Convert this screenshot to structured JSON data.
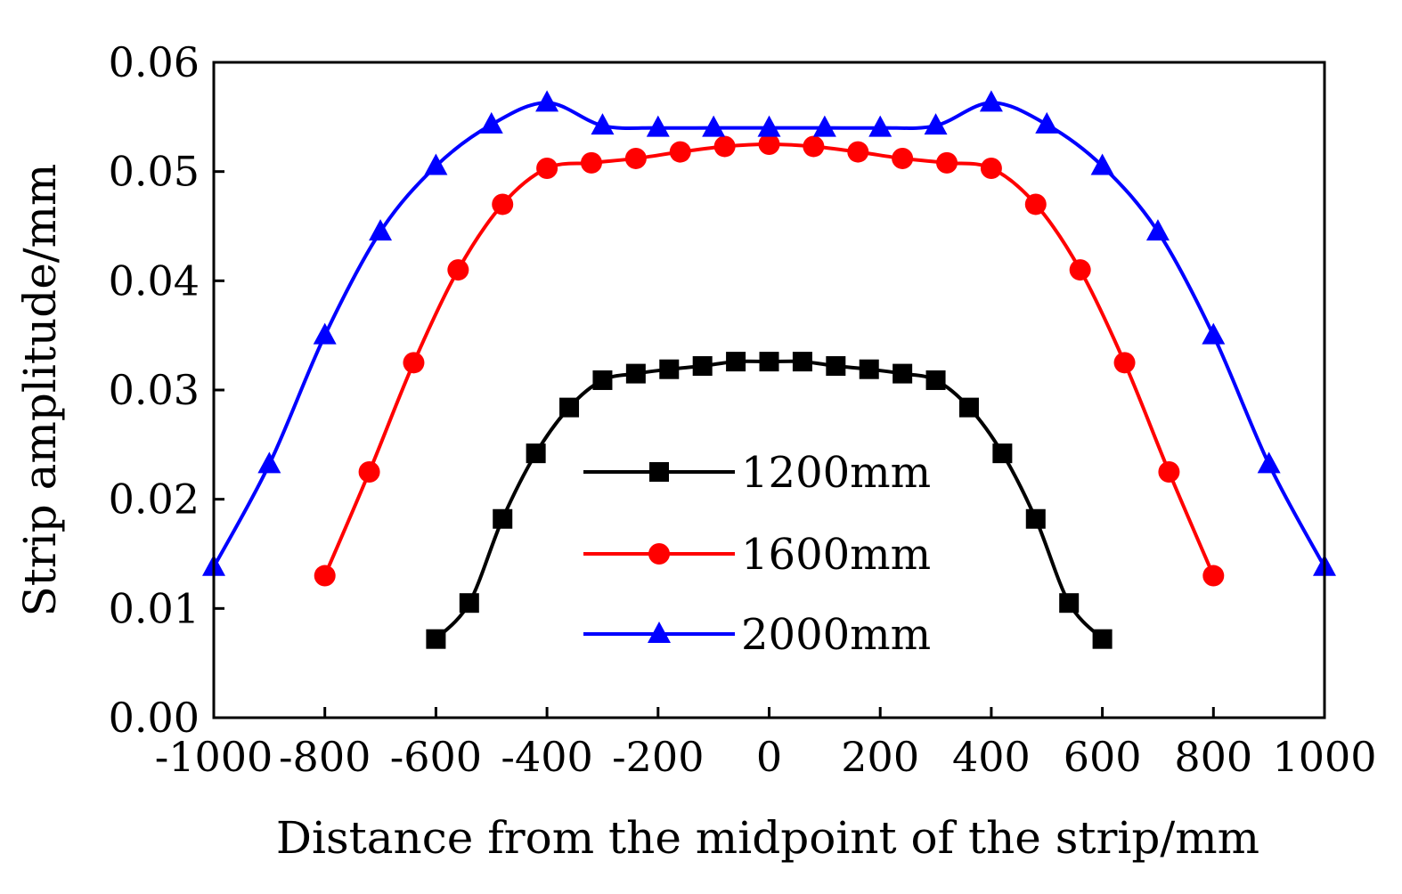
{
  "chart_data": {
    "type": "line",
    "title": "",
    "xlabel": "Distance from the midpoint of the strip/mm",
    "ylabel": "Strip amplitude/mm",
    "xlim": [
      -1000,
      1000
    ],
    "ylim": [
      0,
      0.06
    ],
    "xticks": [
      -1000,
      -800,
      -600,
      -400,
      -200,
      0,
      200,
      400,
      600,
      800,
      1000
    ],
    "xtick_labels": [
      "-1000",
      "-800",
      "-600",
      "-400",
      "-200",
      "0",
      "200",
      "400",
      "600",
      "800",
      "1000"
    ],
    "yticks": [
      0,
      0.01,
      0.02,
      0.03,
      0.04,
      0.05,
      0.06
    ],
    "ytick_labels": [
      "0.00",
      "0.01",
      "0.02",
      "0.03",
      "0.04",
      "0.05",
      "0.06"
    ],
    "grid": false,
    "legend_position": "center",
    "series": [
      {
        "name": "1200mm",
        "color": "#000000",
        "marker": "square",
        "x": [
          -600,
          -540,
          -480,
          -420,
          -360,
          -300,
          -240,
          -180,
          -120,
          -60,
          0,
          60,
          120,
          180,
          240,
          300,
          360,
          420,
          480,
          540,
          600
        ],
        "y": [
          0.0072,
          0.0105,
          0.0182,
          0.0242,
          0.0284,
          0.0309,
          0.0315,
          0.0319,
          0.0322,
          0.0326,
          0.0326,
          0.0326,
          0.0322,
          0.0319,
          0.0315,
          0.0309,
          0.0284,
          0.0242,
          0.0182,
          0.0105,
          0.0072
        ]
      },
      {
        "name": "1600mm",
        "color": "#ff0000",
        "marker": "circle",
        "x": [
          -800,
          -720,
          -640,
          -560,
          -480,
          -400,
          -320,
          -240,
          -160,
          -80,
          0,
          80,
          160,
          240,
          320,
          400,
          480,
          560,
          640,
          720,
          800
        ],
        "y": [
          0.013,
          0.0225,
          0.0325,
          0.041,
          0.047,
          0.0503,
          0.0508,
          0.0512,
          0.0518,
          0.0523,
          0.0525,
          0.0523,
          0.0518,
          0.0512,
          0.0508,
          0.0503,
          0.047,
          0.041,
          0.0325,
          0.0225,
          0.013
        ]
      },
      {
        "name": "2000mm",
        "color": "#0000ff",
        "marker": "triangle",
        "x": [
          -1000,
          -900,
          -800,
          -700,
          -600,
          -500,
          -400,
          -300,
          -200,
          -100,
          0,
          100,
          200,
          300,
          400,
          500,
          600,
          700,
          800,
          900,
          1000
        ],
        "y": [
          0.0138,
          0.0232,
          0.035,
          0.0445,
          0.0505,
          0.0543,
          0.0563,
          0.0542,
          0.054,
          0.054,
          0.054,
          0.054,
          0.054,
          0.0542,
          0.0563,
          0.0543,
          0.0505,
          0.0445,
          0.035,
          0.0232,
          0.0138
        ]
      }
    ]
  }
}
